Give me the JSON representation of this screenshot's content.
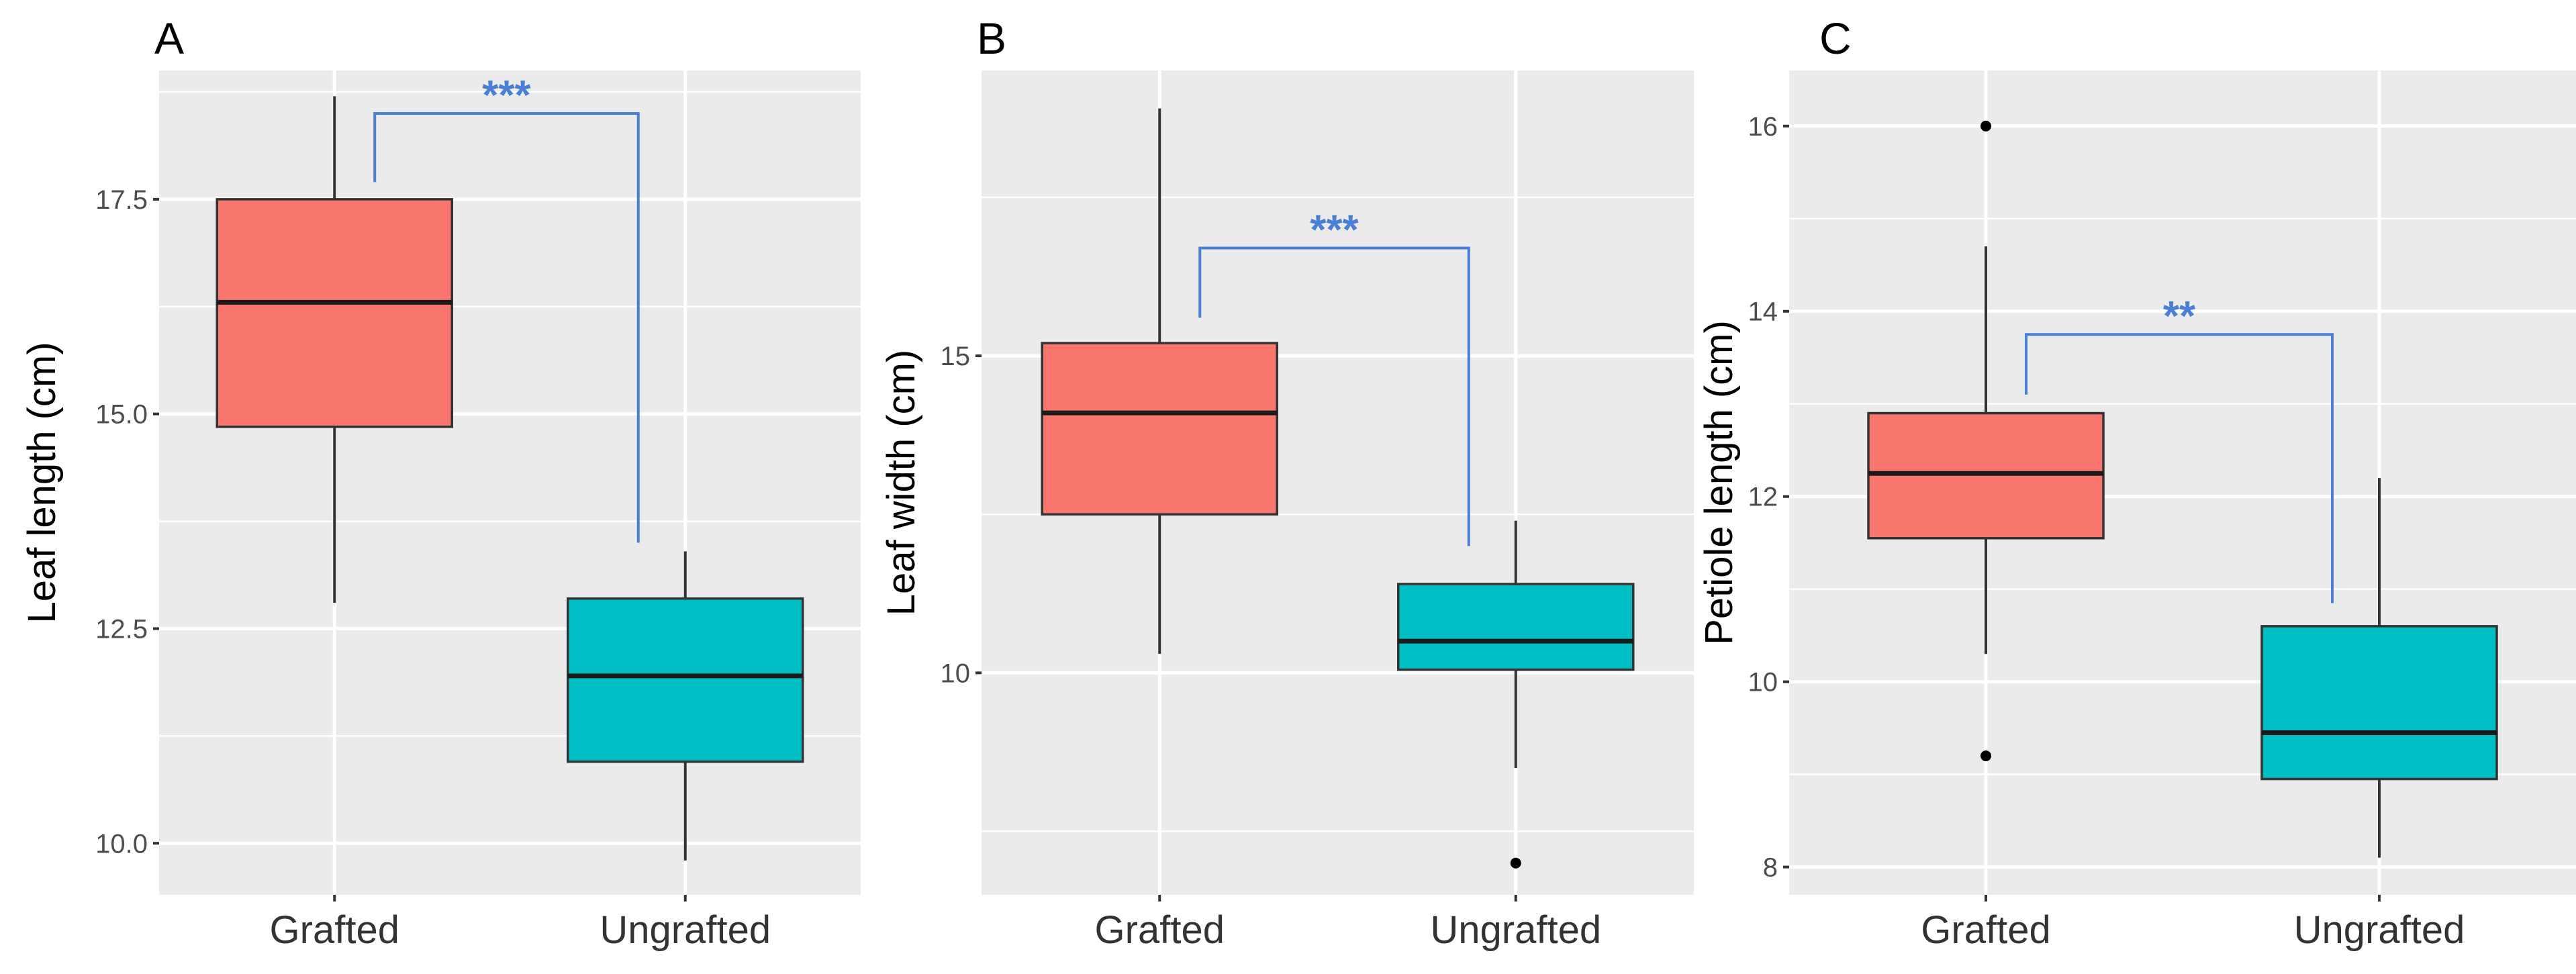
{
  "colors": {
    "grafted": "#f8766d",
    "ungrafted": "#00bfc4",
    "annotation": "#4a7fd1"
  },
  "chart_data": [
    {
      "type": "box",
      "panel_label": "A",
      "ylabel": "Leaf length (cm)",
      "categories": [
        "Grafted",
        "Ungrafted"
      ],
      "ylim": [
        9.4,
        19.0
      ],
      "yticks": [
        10.0,
        12.5,
        15.0,
        17.5
      ],
      "tick_labels": [
        "10.0",
        "12.5",
        "15.0",
        "17.5"
      ],
      "boxes": [
        {
          "category": "Grafted",
          "min": 12.8,
          "q1": 14.85,
          "median": 16.3,
          "q3": 17.5,
          "max": 18.7,
          "outliers": []
        },
        {
          "category": "Ungrafted",
          "min": 9.8,
          "q1": 10.95,
          "median": 11.95,
          "q3": 12.85,
          "max": 13.4,
          "outliers": []
        }
      ],
      "significance": {
        "label": "***",
        "y": 18.5,
        "left_drop": 17.7,
        "right_drop": 13.5
      }
    },
    {
      "type": "box",
      "panel_label": "B",
      "ylabel": "Leaf width (cm)",
      "categories": [
        "Grafted",
        "Ungrafted"
      ],
      "ylim": [
        6.5,
        19.5
      ],
      "yticks": [
        10,
        15
      ],
      "tick_labels": [
        "10",
        "15"
      ],
      "boxes": [
        {
          "category": "Grafted",
          "min": 10.3,
          "q1": 12.5,
          "median": 14.1,
          "q3": 15.2,
          "max": 18.9,
          "outliers": []
        },
        {
          "category": "Ungrafted",
          "min": 8.5,
          "q1": 10.05,
          "median": 10.5,
          "q3": 11.4,
          "max": 12.4,
          "outliers": [
            7.0
          ]
        }
      ],
      "significance": {
        "label": "***",
        "y": 16.7,
        "left_drop": 15.6,
        "right_drop": 12.0
      }
    },
    {
      "type": "box",
      "panel_label": "C",
      "ylabel": "Petiole length (cm)",
      "categories": [
        "Grafted",
        "Ungrafted"
      ],
      "ylim": [
        7.7,
        16.6
      ],
      "yticks": [
        8,
        10,
        12,
        14,
        16
      ],
      "tick_labels": [
        "8",
        "10",
        "12",
        "14",
        "16"
      ],
      "boxes": [
        {
          "category": "Grafted",
          "min": 10.3,
          "q1": 11.55,
          "median": 12.25,
          "q3": 12.9,
          "max": 14.7,
          "outliers": [
            16.0,
            9.2
          ]
        },
        {
          "category": "Ungrafted",
          "min": 8.1,
          "q1": 8.95,
          "median": 9.45,
          "q3": 10.6,
          "max": 12.2,
          "outliers": []
        }
      ],
      "significance": {
        "label": "**",
        "y": 13.75,
        "left_drop": 13.1,
        "right_drop": 10.85
      }
    }
  ]
}
